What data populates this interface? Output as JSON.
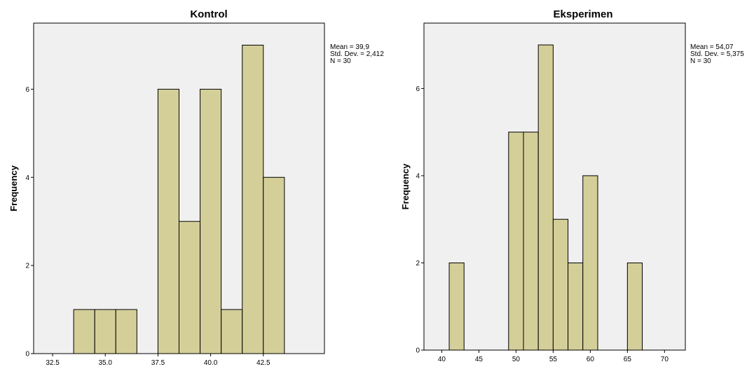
{
  "chart_data": [
    {
      "type": "bar",
      "title": "Kontrol",
      "xlabel": "",
      "ylabel": "Frequency",
      "bins": [
        {
          "start": 33.5,
          "end": 34.5,
          "count": 1
        },
        {
          "start": 34.5,
          "end": 35.5,
          "count": 1
        },
        {
          "start": 35.5,
          "end": 36.5,
          "count": 1
        },
        {
          "start": 37.5,
          "end": 38.5,
          "count": 6
        },
        {
          "start": 38.5,
          "end": 39.5,
          "count": 3
        },
        {
          "start": 39.5,
          "end": 40.5,
          "count": 6
        },
        {
          "start": 40.5,
          "end": 41.5,
          "count": 1
        },
        {
          "start": 41.5,
          "end": 42.5,
          "count": 7
        },
        {
          "start": 42.5,
          "end": 43.5,
          "count": 4
        }
      ],
      "xlim": [
        31.6,
        45.4
      ],
      "ylim": [
        0,
        7.5
      ],
      "x_ticks": [
        "32.5",
        "35.0",
        "37.5",
        "40.0",
        "42.5"
      ],
      "x_tick_values": [
        32.5,
        35.0,
        37.5,
        40.0,
        42.5
      ],
      "y_ticks": [
        "0",
        "2",
        "4",
        "6"
      ],
      "y_tick_values": [
        0,
        2,
        4,
        6
      ],
      "stats": [
        "Mean = 39,9",
        "Std. Dev. = 2,412",
        "N = 30"
      ]
    },
    {
      "type": "bar",
      "title": "Eksperimen",
      "xlabel": "",
      "ylabel": "Frequency",
      "bins": [
        {
          "start": 41,
          "end": 43,
          "count": 2
        },
        {
          "start": 49,
          "end": 51,
          "count": 5
        },
        {
          "start": 51,
          "end": 53,
          "count": 5
        },
        {
          "start": 53,
          "end": 55,
          "count": 7
        },
        {
          "start": 55,
          "end": 57,
          "count": 3
        },
        {
          "start": 57,
          "end": 59,
          "count": 2
        },
        {
          "start": 59,
          "end": 61,
          "count": 4
        },
        {
          "start": 65,
          "end": 67,
          "count": 2
        }
      ],
      "xlim": [
        37.6,
        72.8
      ],
      "ylim": [
        0,
        7.5
      ],
      "x_ticks": [
        "40",
        "45",
        "50",
        "55",
        "60",
        "65",
        "70"
      ],
      "x_tick_values": [
        40,
        45,
        50,
        55,
        60,
        65,
        70
      ],
      "y_ticks": [
        "0",
        "2",
        "4",
        "6"
      ],
      "y_tick_values": [
        0,
        2,
        4,
        6
      ],
      "stats": [
        "Mean = 54,07",
        "Std. Dev. = 5,375",
        "N = 30"
      ]
    }
  ]
}
